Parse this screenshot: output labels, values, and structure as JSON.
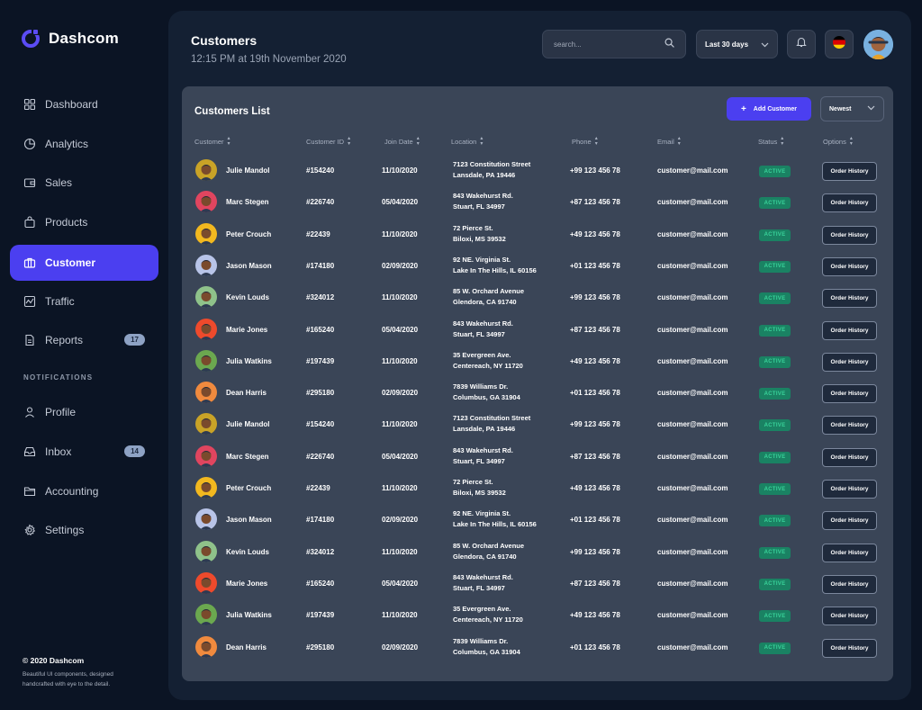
{
  "brand": {
    "name": "Dashcom"
  },
  "sidebar": {
    "items": [
      {
        "label": "Dashboard",
        "icon": "grid-icon"
      },
      {
        "label": "Analytics",
        "icon": "pie-chart-icon"
      },
      {
        "label": "Sales",
        "icon": "wallet-icon"
      },
      {
        "label": "Products",
        "icon": "bag-icon"
      },
      {
        "label": "Customer",
        "icon": "briefcase-icon",
        "active": true
      },
      {
        "label": "Traffic",
        "icon": "activity-icon"
      },
      {
        "label": "Reports",
        "icon": "file-icon",
        "badge": "17"
      }
    ],
    "section_label": "NOTIFICATIONS",
    "items2": [
      {
        "label": "Profile",
        "icon": "user-icon"
      },
      {
        "label": "Inbox",
        "icon": "inbox-icon",
        "badge": "14"
      },
      {
        "label": "Accounting",
        "icon": "folder-icon"
      },
      {
        "label": "Settings",
        "icon": "gear-icon"
      }
    ],
    "footer_copy": "© 2020 Dashcom",
    "footer_desc": "Beautiful UI components, designed handcrafted with eye to the detail."
  },
  "header": {
    "title": "Customers",
    "subtitle": "12:15 PM at 19th November 2020",
    "search_placeholder": "search...",
    "range_label": "Last 30 days"
  },
  "card": {
    "title": "Customers List",
    "add_label": "Add Customer",
    "sort_label": "Newest",
    "columns": [
      "Customer",
      "Customer ID",
      "Join Date",
      "Location",
      "Phone",
      "Email",
      "Status",
      "Options"
    ],
    "rows": [
      {
        "name": "Julie Mandol",
        "id": "#154240",
        "date": "11/10/2020",
        "loc1": "7123 Constitution Street",
        "loc2": "Lansdale, PA 19446",
        "phone": "+99 123 456 78",
        "email": "customer@mail.com",
        "status": "ACTIVE",
        "option": "Order History",
        "avatar_bg": "#c9a327"
      },
      {
        "name": "Marc Stegen",
        "id": "#226740",
        "date": "05/04/2020",
        "loc1": "843 Wakehurst Rd.",
        "loc2": "Stuart, FL 34997",
        "phone": "+87 123 456 78",
        "email": "customer@mail.com",
        "status": "ACTIVE",
        "option": "Order History",
        "avatar_bg": "#e0455f"
      },
      {
        "name": "Peter Crouch",
        "id": "#22439",
        "date": "11/10/2020",
        "loc1": "72 Pierce St.",
        "loc2": "Biloxi, MS 39532",
        "phone": "+49 123 456 78",
        "email": "customer@mail.com",
        "status": "ACTIVE",
        "option": "Order History",
        "avatar_bg": "#f2b81f"
      },
      {
        "name": "Jason Mason",
        "id": "#174180",
        "date": "02/09/2020",
        "loc1": "92 NE. Virginia St.",
        "loc2": "Lake In The Hills, IL 60156",
        "phone": "+01 123 456 78",
        "email": "customer@mail.com",
        "status": "ACTIVE",
        "option": "Order History",
        "avatar_bg": "#b8c4e8"
      },
      {
        "name": "Kevin Louds",
        "id": "#324012",
        "date": "11/10/2020",
        "loc1": "85 W. Orchard Avenue",
        "loc2": "Glendora, CA 91740",
        "phone": "+99 123 456 78",
        "email": "customer@mail.com",
        "status": "ACTIVE",
        "option": "Order History",
        "avatar_bg": "#8fc28a"
      },
      {
        "name": "Marie Jones",
        "id": "#165240",
        "date": "05/04/2020",
        "loc1": "843 Wakehurst Rd.",
        "loc2": "Stuart, FL 34997",
        "phone": "+87 123 456 78",
        "email": "customer@mail.com",
        "status": "ACTIVE",
        "option": "Order History",
        "avatar_bg": "#ee4a2c"
      },
      {
        "name": "Julia Watkins",
        "id": "#197439",
        "date": "11/10/2020",
        "loc1": "35 Evergreen Ave.",
        "loc2": "Centereach, NY 11720",
        "phone": "+49 123 456 78",
        "email": "customer@mail.com",
        "status": "ACTIVE",
        "option": "Order History",
        "avatar_bg": "#6ba84f"
      },
      {
        "name": "Dean Harris",
        "id": "#295180",
        "date": "02/09/2020",
        "loc1": "7839 Williams Dr.",
        "loc2": "Columbus, GA 31904",
        "phone": "+01 123 456 78",
        "email": "customer@mail.com",
        "status": "ACTIVE",
        "option": "Order History",
        "avatar_bg": "#f08a3e"
      },
      {
        "name": "Julie Mandol",
        "id": "#154240",
        "date": "11/10/2020",
        "loc1": "7123 Constitution Street",
        "loc2": "Lansdale, PA 19446",
        "phone": "+99 123 456 78",
        "email": "customer@mail.com",
        "status": "ACTIVE",
        "option": "Order History",
        "avatar_bg": "#c9a327"
      },
      {
        "name": "Marc Stegen",
        "id": "#226740",
        "date": "05/04/2020",
        "loc1": "843 Wakehurst Rd.",
        "loc2": "Stuart, FL 34997",
        "phone": "+87 123 456 78",
        "email": "customer@mail.com",
        "status": "ACTIVE",
        "option": "Order History",
        "avatar_bg": "#e0455f"
      },
      {
        "name": "Peter Crouch",
        "id": "#22439",
        "date": "11/10/2020",
        "loc1": "72 Pierce St.",
        "loc2": "Biloxi, MS 39532",
        "phone": "+49 123 456 78",
        "email": "customer@mail.com",
        "status": "ACTIVE",
        "option": "Order History",
        "avatar_bg": "#f2b81f"
      },
      {
        "name": "Jason Mason",
        "id": "#174180",
        "date": "02/09/2020",
        "loc1": "92 NE. Virginia St.",
        "loc2": "Lake In The Hills, IL 60156",
        "phone": "+01 123 456 78",
        "email": "customer@mail.com",
        "status": "ACTIVE",
        "option": "Order History",
        "avatar_bg": "#b8c4e8"
      },
      {
        "name": "Kevin Louds",
        "id": "#324012",
        "date": "11/10/2020",
        "loc1": "85 W. Orchard Avenue",
        "loc2": "Glendora, CA 91740",
        "phone": "+99 123 456 78",
        "email": "customer@mail.com",
        "status": "ACTIVE",
        "option": "Order History",
        "avatar_bg": "#8fc28a"
      },
      {
        "name": "Marie Jones",
        "id": "#165240",
        "date": "05/04/2020",
        "loc1": "843 Wakehurst Rd.",
        "loc2": "Stuart, FL 34997",
        "phone": "+87 123 456 78",
        "email": "customer@mail.com",
        "status": "ACTIVE",
        "option": "Order History",
        "avatar_bg": "#ee4a2c"
      },
      {
        "name": "Julia Watkins",
        "id": "#197439",
        "date": "11/10/2020",
        "loc1": "35 Evergreen Ave.",
        "loc2": "Centereach, NY 11720",
        "phone": "+49 123 456 78",
        "email": "customer@mail.com",
        "status": "ACTIVE",
        "option": "Order History",
        "avatar_bg": "#6ba84f"
      },
      {
        "name": "Dean Harris",
        "id": "#295180",
        "date": "02/09/2020",
        "loc1": "7839 Williams Dr.",
        "loc2": "Columbus, GA 31904",
        "phone": "+01 123 456 78",
        "email": "customer@mail.com",
        "status": "ACTIVE",
        "option": "Order History",
        "avatar_bg": "#f08a3e"
      }
    ]
  },
  "colors": {
    "accent": "#4b3ff0",
    "status_bg": "#1a8263",
    "status_text": "#39d39a"
  }
}
